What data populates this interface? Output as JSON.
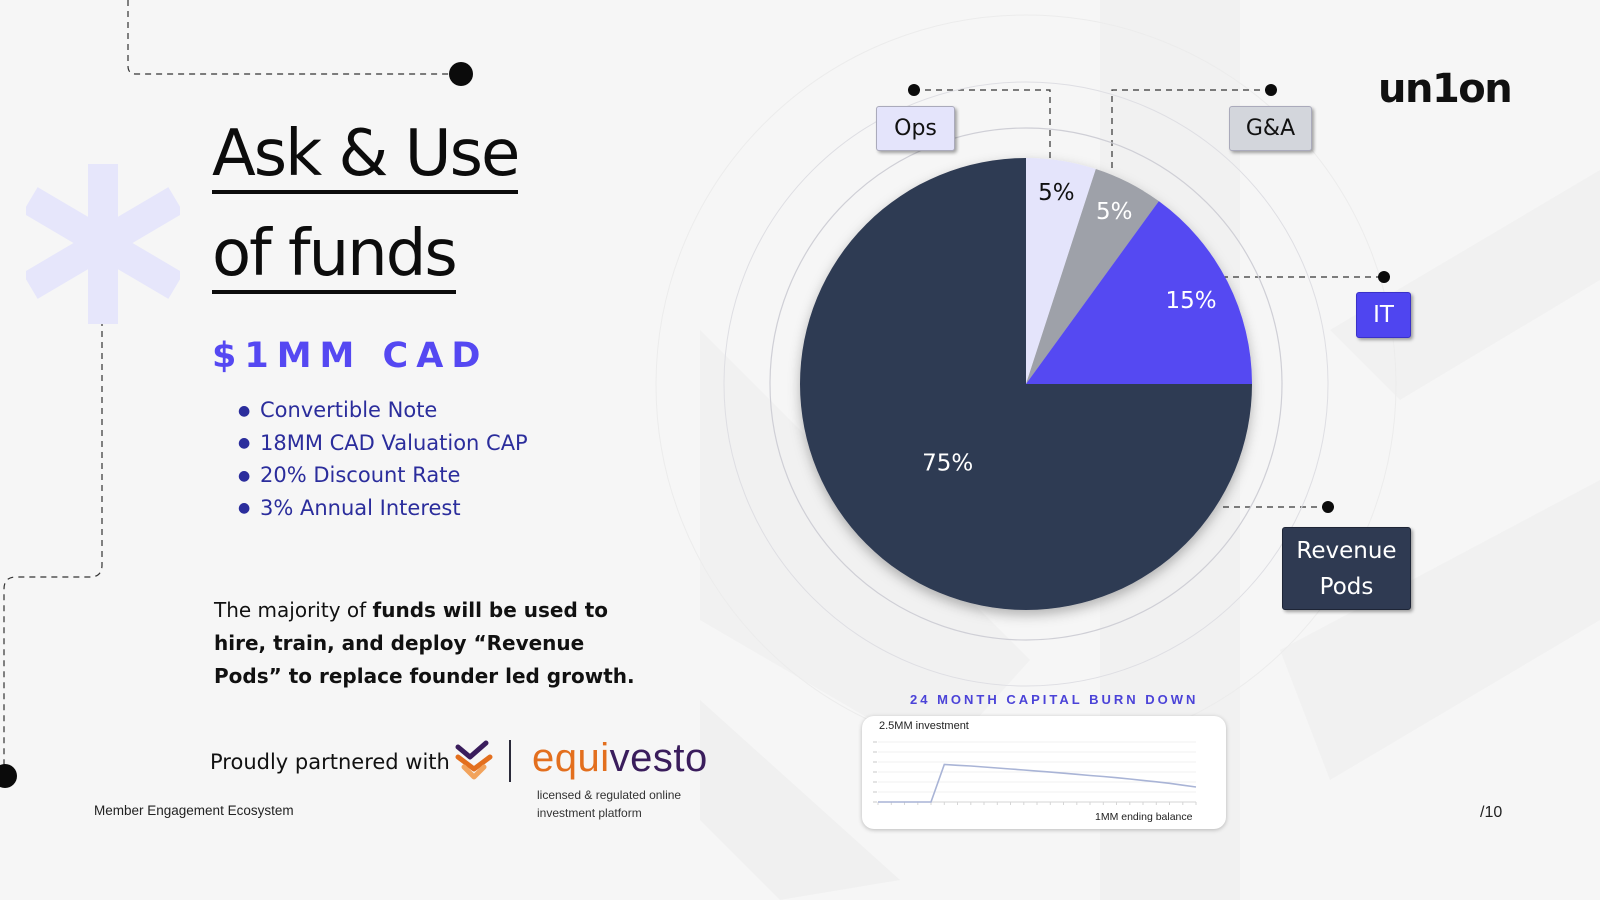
{
  "slide": {
    "title_line1": "Ask & Use",
    "title_line2": "of funds",
    "ask_amount": "$1MM CAD",
    "terms": [
      "Convertible Note",
      "18MM CAD Valuation CAP",
      "20% Discount Rate",
      "3% Annual Interest"
    ],
    "funds_text_start": "The majority of ",
    "funds_text_bold": "funds will be used to hire, train, and deploy “Revenue Pods” to replace founder led growth.",
    "partner_text": "Proudly partnered with",
    "partner_name_part1": "equi",
    "partner_name_part2": "vesto",
    "partner_tagline": "licensed & regulated online investment platform",
    "footer_left": "Member Engagement Ecosystem",
    "page_number": "/10",
    "logo": "un1on"
  },
  "colors": {
    "accent": "#5548f2",
    "term_text": "#2b2d9c",
    "ops": "#e4e4fb",
    "ga": "#9ea1a9",
    "it": "#5548f2",
    "revenue_pods": "#2f3a52",
    "partner_orange": "#e36f1e",
    "partner_purple": "#3a1d5c"
  },
  "chart_data": [
    {
      "type": "pie",
      "title": "",
      "slices": [
        {
          "name": "Ops",
          "value": 5,
          "label": "5%",
          "color": "#e4e4fb",
          "label_color": "#111111"
        },
        {
          "name": "G&A",
          "value": 5,
          "label": "5%",
          "color": "#9ea1a9",
          "label_color": "#ffffff"
        },
        {
          "name": "IT",
          "value": 15,
          "label": "15%",
          "color": "#5548f2",
          "label_color": "#ffffff"
        },
        {
          "name": "Revenue Pods",
          "value": 75,
          "label": "75%",
          "color": "#2f3a52",
          "label_color": "#ffffff"
        }
      ],
      "callouts": {
        "ops": "Ops",
        "ga": "G&A",
        "it": "IT",
        "revenue_line1": "Revenue",
        "revenue_line2": "Pods"
      }
    },
    {
      "type": "line",
      "title": "24 MONTH CAPITAL BURN DOWN",
      "x": [
        0,
        1,
        2,
        3,
        4,
        5,
        6,
        7,
        8,
        9,
        10,
        11,
        12,
        13,
        14,
        15,
        16,
        17,
        18,
        19,
        20,
        21,
        22,
        23,
        24
      ],
      "series": [
        {
          "values": [
            0,
            0,
            0,
            0,
            0,
            2.5,
            2.45,
            2.4,
            2.33,
            2.27,
            2.2,
            2.13,
            2.06,
            1.99,
            1.92,
            1.85,
            1.77,
            1.7,
            1.62,
            1.53,
            1.44,
            1.35,
            1.25,
            1.12,
            1.0
          ]
        }
      ],
      "ylim": [
        0,
        4
      ],
      "annotations": {
        "start": "2.5MM investment",
        "end": "1MM ending balance"
      }
    }
  ]
}
